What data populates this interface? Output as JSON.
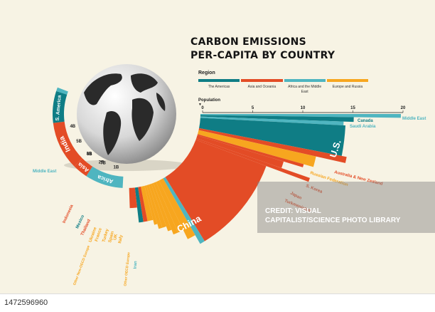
{
  "title_lines": [
    "CARBON EMISSIONS",
    "PER-CAPITA BY COUNTRY"
  ],
  "legend": {
    "heading": "Region",
    "items": [
      {
        "label": "The Americas",
        "color": "#0f7d85"
      },
      {
        "label": "Asia and Oceania",
        "color": "#e34c26"
      },
      {
        "label": "Africa and the Middle East",
        "color": "#4fb5c0"
      },
      {
        "label": "Europe and Russia",
        "color": "#f7a61f"
      }
    ]
  },
  "chart_data": {
    "type": "radial-bar",
    "description_labels": {
      "population_axis": "Population",
      "emissions_ticks": [
        "0",
        "5",
        "10",
        "15",
        "20"
      ]
    },
    "emissions_axis": {
      "ticks": [
        0,
        5,
        10,
        15,
        20
      ],
      "range": [
        0,
        20
      ]
    },
    "population_ring": {
      "segments": [
        {
          "label": "Africa",
          "region": "Africa and the Middle East",
          "population": 1.3
        },
        {
          "label": "Asia",
          "region": "Asia and Oceania",
          "population": 0.45
        },
        {
          "label": "India",
          "region": "Asia and Oceania",
          "population": 1.35
        },
        {
          "label": "S. America",
          "region": "The Americas",
          "population": 0.4
        },
        {
          "label": "Middle East",
          "region": "Africa and the Middle East",
          "population": 0.1
        }
      ],
      "tick_labels": [
        "7B",
        "6B",
        "5B",
        "4B",
        "3B",
        "2B",
        "1B"
      ]
    },
    "bars": [
      {
        "label": "Middle East",
        "region": "Africa and the Middle East",
        "value": 20
      },
      {
        "label": "Canada",
        "region": "The Americas",
        "value": 15.3
      },
      {
        "label": "Saudi Arabia",
        "region": "Africa and the Middle East",
        "value": 14.3
      },
      {
        "label": "U.S.",
        "region": "The Americas",
        "value": 14.5
      },
      {
        "label": "Australia & New Zealand",
        "region": "Asia and Oceania",
        "value": 15
      },
      {
        "label": "Russian Federation",
        "region": "Europe and Russia",
        "value": 12
      },
      {
        "label": "S. Korea",
        "region": "Asia and Oceania",
        "value": 11
      },
      {
        "label": "Japan",
        "region": "Asia and Oceania",
        "value": 9
      },
      {
        "label": "Turkmenistan",
        "region": "Asia and Oceania",
        "value": 12
      },
      {
        "label": "China",
        "region": "Asia and Oceania",
        "value": 7.5
      },
      {
        "label": "Iran",
        "region": "Africa and the Middle East",
        "value": 7.5
      },
      {
        "label": "Other OECD Europe",
        "region": "Europe and Russia",
        "value": 6.5
      },
      {
        "label": "Italy",
        "region": "Europe and Russia",
        "value": 5.5
      },
      {
        "label": "UK",
        "region": "Europe and Russia",
        "value": 5.5
      },
      {
        "label": "Spain",
        "region": "Europe and Russia",
        "value": 5
      },
      {
        "label": "Turkey",
        "region": "Europe and Russia",
        "value": 4.5
      },
      {
        "label": "France",
        "region": "Europe and Russia",
        "value": 4.5
      },
      {
        "label": "Ukraine",
        "region": "Europe and Russia",
        "value": 4
      },
      {
        "label": "Other Non-OECD Europe",
        "region": "Europe and Russia",
        "value": 3.5
      },
      {
        "label": "Thailand",
        "region": "Asia and Oceania",
        "value": 3.5
      },
      {
        "label": "Mexico",
        "region": "The Americas",
        "value": 3.5
      },
      {
        "label": "Indonesia",
        "region": "Asia and Oceania",
        "value": 2
      }
    ]
  },
  "ring_labels": {
    "africa": "Africa",
    "asia": "Asia",
    "india": "India",
    "s_america": "S. America",
    "middle_east": "Middle East",
    "b7": "7B",
    "b6": "6B",
    "b5": "5B",
    "b4": "4B",
    "b3": "3B",
    "b2": "2B",
    "b1": "1B"
  },
  "bar_labels": {
    "canada": "Canada",
    "saudi": "Saudi Arabia",
    "middle_east": "Middle East",
    "us": "U.S.",
    "aus_nz": "Australia & New Zealand",
    "russia": "Russian Federation",
    "s_korea": "S. Korea",
    "japan": "Japan",
    "turkmenistan": "Turkmenistan",
    "china": "China",
    "indonesia": "Indonesia",
    "mexico": "Mexico",
    "thailand": "Thailand",
    "other_non_oecd": "Other Non-OECD Europe",
    "ukraine": "Ukraine",
    "france": "France",
    "turkey": "Turkey",
    "spain": "Spain",
    "uk": "UK",
    "italy": "Italy",
    "other_oecd": "Other OECD Europe",
    "iran": "Iran"
  },
  "watermark": {
    "lines": [
      "CREDIT: VISUAL",
      "CAPITALIST/SCIENCE PHOTO LIBRARY"
    ]
  },
  "footer": {
    "id": "1472596960"
  }
}
